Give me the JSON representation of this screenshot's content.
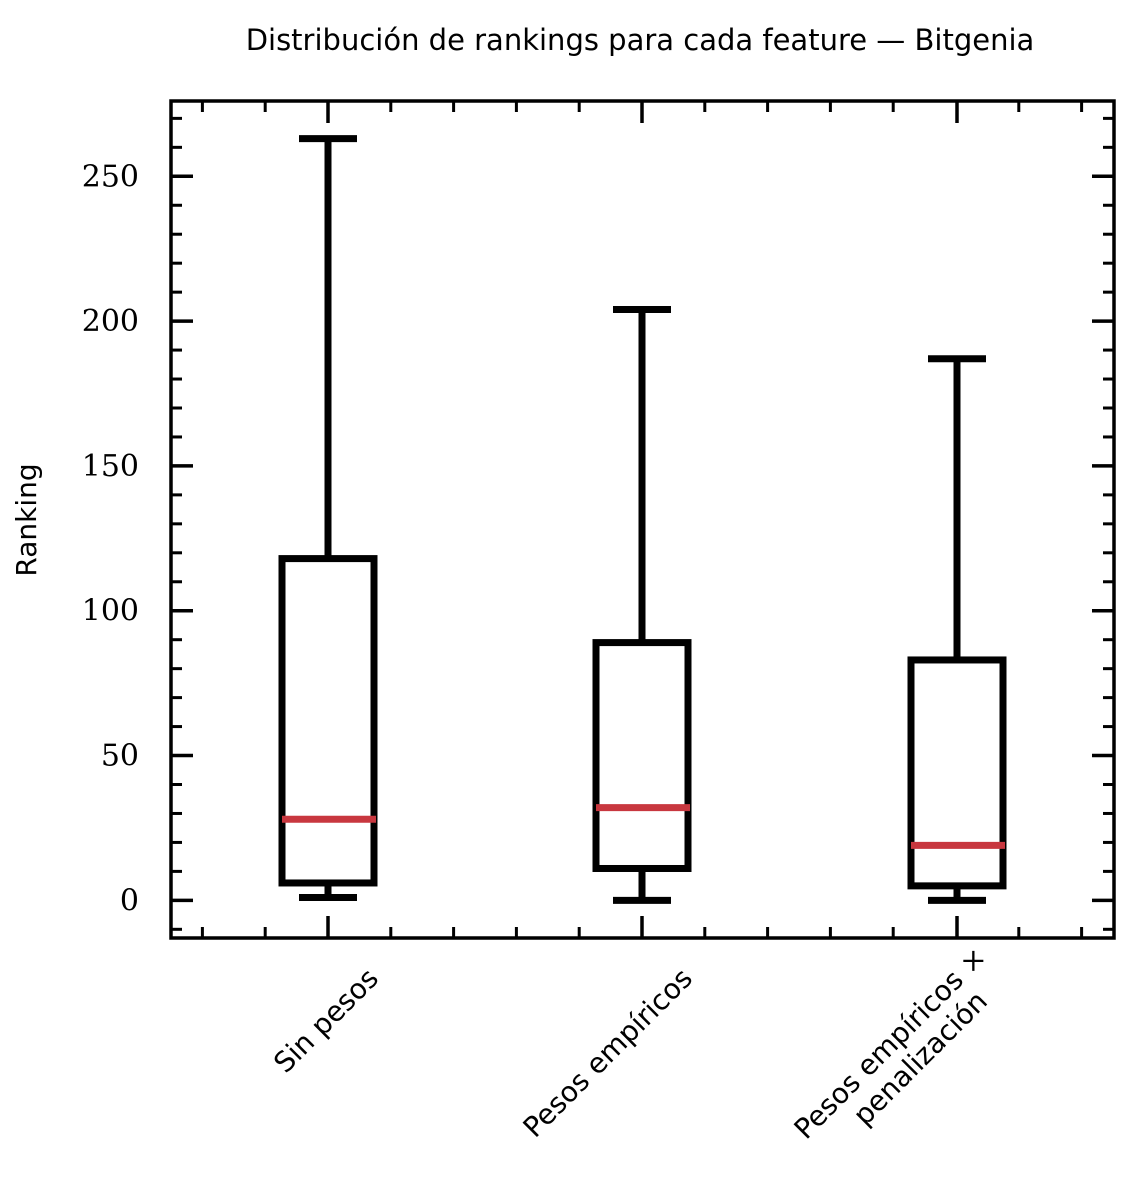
{
  "chart_data": {
    "type": "box",
    "title": "Distribución de rankings para cada feature — Bitgenia",
    "xlabel": "",
    "ylabel": "Ranking",
    "ylim": [
      -13,
      276
    ],
    "yticks": [
      0,
      50,
      100,
      150,
      200,
      250
    ],
    "yticks_minor_step": 10,
    "grid": false,
    "categories": [
      [
        "Sin pesos"
      ],
      [
        "Pesos empíricos"
      ],
      [
        "Pesos empíricos ×",
        "penalización"
      ]
    ],
    "boxes": [
      {
        "whisker_low": 1,
        "q1": 6,
        "median": 28,
        "q3": 118,
        "whisker_high": 263
      },
      {
        "whisker_low": 0,
        "q1": 11,
        "median": 32,
        "q3": 89,
        "whisker_high": 204
      },
      {
        "whisker_low": 0,
        "q1": 5,
        "median": 19,
        "q3": 83,
        "whisker_high": 187
      }
    ],
    "colors": {
      "box": "#000000",
      "median": "#c8373f"
    }
  }
}
